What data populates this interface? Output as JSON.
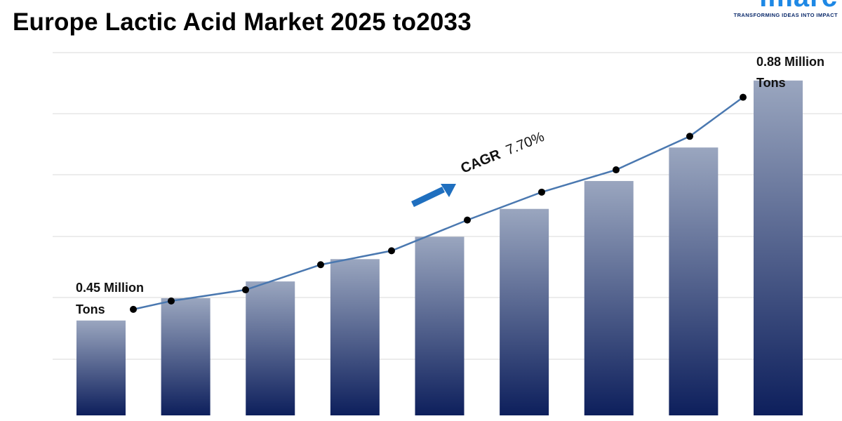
{
  "header": {
    "title": "Europe Lactic Acid Market 2025 to2033"
  },
  "logo": {
    "word": "imarc",
    "tagline": "TRANSFORMING IDEAS INTO IMPACT"
  },
  "chart_data": {
    "type": "bar",
    "title": "Europe Lactic Acid Market 2025 to2033",
    "categories": [
      "",
      "",
      "",
      "",
      "",
      "",
      "",
      "",
      ""
    ],
    "series": [
      {
        "values": [
          0.45,
          0.49,
          0.52,
          0.56,
          0.6,
          0.65,
          0.7,
          0.76,
          0.88
        ]
      }
    ],
    "trend_line": {
      "values": [
        0.47,
        0.485,
        0.505,
        0.55,
        0.575,
        0.63,
        0.68,
        0.72,
        0.78,
        0.85
      ]
    },
    "annotations": {
      "start_label_line1": "0.45 Million",
      "start_label_line2": "Tons",
      "end_label_line1": "0.88 Million",
      "end_label_line2": "Tons",
      "cagr_prefix": "CAGR",
      "cagr_value": "7.70%"
    },
    "ylim": [
      0.28,
      0.93
    ],
    "grid": true,
    "legend": "none",
    "colors": {
      "bar_top": "#9aa6bf",
      "bar_bottom": "#0d1f5c",
      "line": "#4a78b0",
      "marker": "#000000",
      "arrow": "#1f6fbf",
      "grid": "#d9d9d9"
    }
  }
}
